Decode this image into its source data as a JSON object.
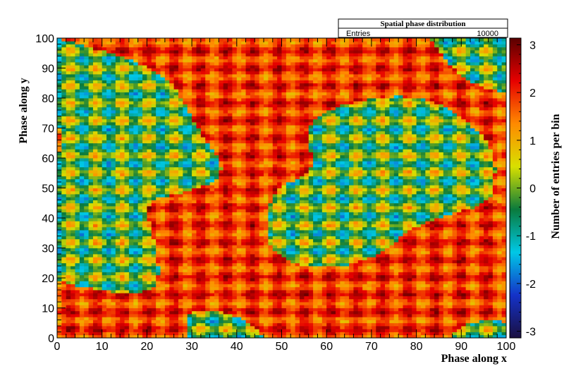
{
  "chart_data": {
    "type": "heatmap",
    "title": "Spatial phase distribution",
    "xlabel": "Phase along x",
    "ylabel": "Phase along y",
    "zlabel": "Number of entries per bin",
    "xlim": [
      0,
      100
    ],
    "ylim": [
      0,
      100
    ],
    "zlim": [
      -3.14,
      3.14
    ],
    "x_ticks": [
      "0",
      "10",
      "20",
      "30",
      "40",
      "50",
      "60",
      "70",
      "80",
      "90",
      "100"
    ],
    "y_ticks": [
      "0",
      "10",
      "20",
      "30",
      "40",
      "50",
      "60",
      "70",
      "80",
      "90",
      "100"
    ],
    "z_ticks": [
      "-3",
      "-2",
      "-1",
      "0",
      "1",
      "2",
      "3"
    ],
    "colormap": [
      "#1a0f40",
      "#1432c8",
      "#00c8e6",
      "#0a7a3c",
      "#d8e000",
      "#ff8a00",
      "#e60000",
      "#5a0000"
    ],
    "stats": {
      "label": "Entries",
      "value": "10000"
    },
    "grid": false,
    "legend": "colorbar-right"
  }
}
